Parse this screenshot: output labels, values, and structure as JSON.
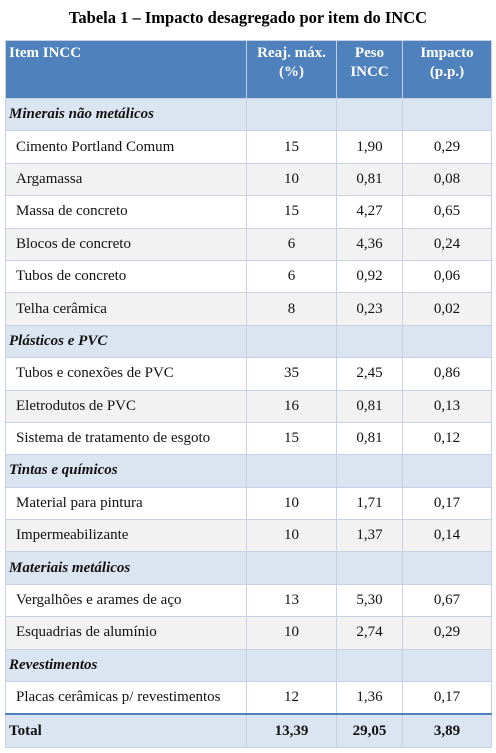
{
  "title": "Tabela 1 – Impacto desagregado por item do INCC",
  "table": {
    "columns": [
      "Item INCC",
      "Reaj. máx. (%)",
      "Peso INCC",
      "Impacto (p.p.)"
    ],
    "groups": [
      {
        "name": "Minerais não metálicos",
        "rows": [
          [
            "Cimento Portland Comum",
            "15",
            "1,90",
            "0,29"
          ],
          [
            "Argamassa",
            "10",
            "0,81",
            "0,08"
          ],
          [
            "Massa de concreto",
            "15",
            "4,27",
            "0,65"
          ],
          [
            "Blocos de concreto",
            "6",
            "4,36",
            "0,24"
          ],
          [
            "Tubos de concreto",
            "6",
            "0,92",
            "0,06"
          ],
          [
            "Telha cerâmica",
            "8",
            "0,23",
            "0,02"
          ]
        ]
      },
      {
        "name": "Plásticos e PVC",
        "rows": [
          [
            "Tubos e conexões de PVC",
            "35",
            "2,45",
            "0,86"
          ],
          [
            "Eletrodutos de PVC",
            "16",
            "0,81",
            "0,13"
          ],
          [
            "Sistema de tratamento de esgoto",
            "15",
            "0,81",
            "0,12"
          ]
        ]
      },
      {
        "name": "Tintas e químicos",
        "rows": [
          [
            "Material para pintura",
            "10",
            "1,71",
            "0,17"
          ],
          [
            "Impermeabilizante",
            "10",
            "1,37",
            "0,14"
          ]
        ]
      },
      {
        "name": "Materiais metálicos",
        "rows": [
          [
            "Vergalhões e arames de aço",
            "13",
            "5,30",
            "0,67"
          ],
          [
            "Esquadrias de alumínio",
            "10",
            "2,74",
            "0,29"
          ]
        ]
      },
      {
        "name": "Revestimentos",
        "rows": [
          [
            "Placas cerâmicas p/ revestimentos",
            "12",
            "1,36",
            "0,17"
          ]
        ]
      }
    ],
    "total": [
      "Total",
      "13,39",
      "29,05",
      "3,89"
    ]
  }
}
